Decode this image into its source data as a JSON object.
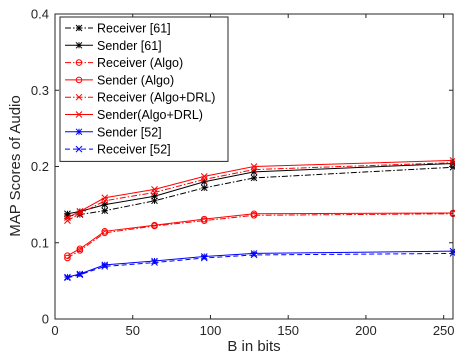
{
  "chart_data": {
    "type": "line",
    "title": "",
    "xlabel": "B in bits",
    "ylabel": "MAP Scores of Audio",
    "xlim": [
      0,
      256
    ],
    "ylim": [
      0,
      0.4
    ],
    "xticks": [
      0,
      50,
      100,
      150,
      200,
      250
    ],
    "xtick_labels": [
      "0",
      "50",
      "100",
      "150",
      "200",
      "250"
    ],
    "yticks": [
      0,
      0.1,
      0.2,
      0.3,
      0.4
    ],
    "ytick_labels": [
      "0",
      "0.1",
      "0.2",
      "0.3",
      "0.4"
    ],
    "grid": false,
    "legend_position": "top-left",
    "x": [
      8,
      16,
      32,
      64,
      96,
      128,
      256
    ],
    "series": [
      {
        "name": "Receiver [61]",
        "color": "#000000",
        "dash": "dashdot",
        "marker": "star",
        "values": [
          0.135,
          0.137,
          0.142,
          0.155,
          0.172,
          0.185,
          0.199
        ]
      },
      {
        "name": "Sender [61]",
        "color": "#000000",
        "dash": "solid",
        "marker": "star",
        "values": [
          0.138,
          0.141,
          0.15,
          0.161,
          0.18,
          0.193,
          0.204
        ]
      },
      {
        "name": "Receiver (Algo)",
        "color": "#ff0000",
        "dash": "dashdot",
        "marker": "circle",
        "values": [
          0.08,
          0.09,
          0.113,
          0.122,
          0.129,
          0.136,
          0.138
        ]
      },
      {
        "name": "Sender (Algo)",
        "color": "#ff0000",
        "dash": "solid",
        "marker": "circle",
        "values": [
          0.083,
          0.092,
          0.115,
          0.123,
          0.131,
          0.138,
          0.139
        ]
      },
      {
        "name": "Receiver (Algo+DRL)",
        "color": "#ff0000",
        "dash": "dashdot",
        "marker": "cross",
        "values": [
          0.129,
          0.138,
          0.155,
          0.166,
          0.183,
          0.196,
          0.205
        ]
      },
      {
        "name": "Sender(Algo+DRL)",
        "color": "#ff0000",
        "dash": "solid",
        "marker": "cross",
        "values": [
          0.133,
          0.141,
          0.159,
          0.17,
          0.187,
          0.2,
          0.208
        ]
      },
      {
        "name": "Sender [52]",
        "color": "#0000ff",
        "dash": "solid",
        "marker": "star",
        "values": [
          0.055,
          0.059,
          0.071,
          0.076,
          0.082,
          0.086,
          0.089
        ]
      },
      {
        "name": "Receiver [52]",
        "color": "#0000ff",
        "dash": "dashed",
        "marker": "cross",
        "values": [
          0.054,
          0.058,
          0.069,
          0.074,
          0.08,
          0.084,
          0.086
        ]
      }
    ]
  }
}
